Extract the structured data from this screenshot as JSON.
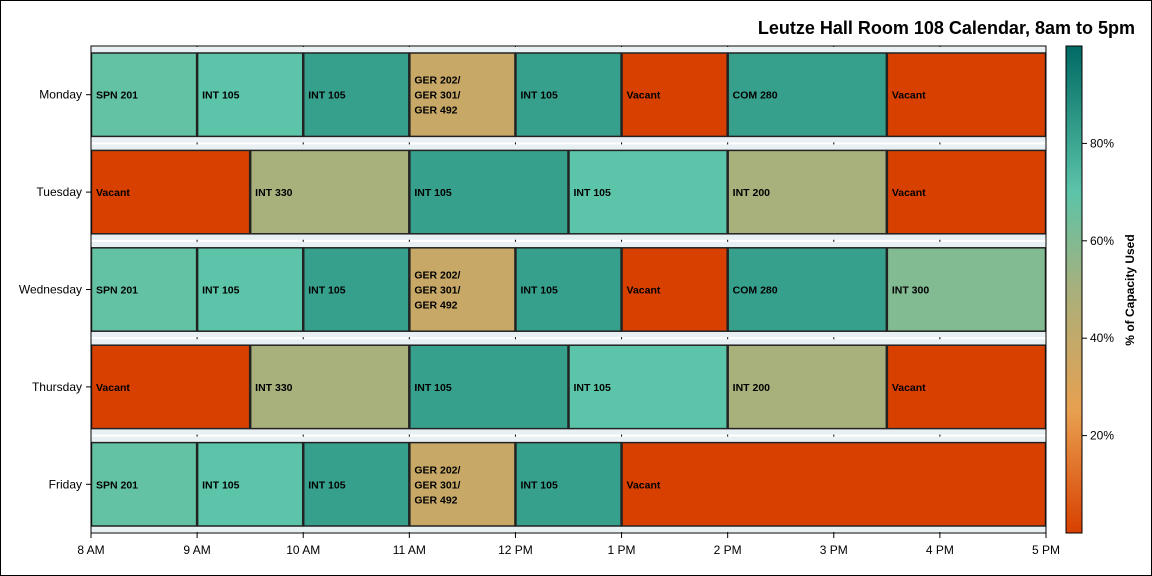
{
  "chart_data": {
    "type": "bar",
    "orientation": "horizontal-gantt",
    "title": "Leutze Hall Room 108 Calendar, 8am to 5pm",
    "xlabel": "",
    "ylabel": "",
    "xlim": [
      8,
      17
    ],
    "x_ticks": [
      8,
      9,
      10,
      11,
      12,
      13,
      14,
      15,
      16,
      17
    ],
    "x_tick_labels": [
      "8 AM",
      "9 AM",
      "10 AM",
      "11 AM",
      "12 PM",
      "1 PM",
      "2 PM",
      "3 PM",
      "4 PM",
      "5 PM"
    ],
    "categories": [
      "Monday",
      "Tuesday",
      "Wednesday",
      "Thursday",
      "Friday"
    ],
    "grid": true,
    "rows": [
      {
        "day": "Monday",
        "blocks": [
          {
            "start": 8,
            "end": 9,
            "label": "SPN 201",
            "capacity": 68
          },
          {
            "start": 9,
            "end": 10,
            "label": "INT 105",
            "capacity": 70
          },
          {
            "start": 10,
            "end": 11,
            "label": "INT 105",
            "capacity": 82
          },
          {
            "start": 11,
            "end": 12,
            "label": "GER 202/ GER 301/ GER 492",
            "capacity": 38
          },
          {
            "start": 12,
            "end": 13,
            "label": "INT 105",
            "capacity": 82
          },
          {
            "start": 13,
            "end": 14,
            "label": "Vacant",
            "capacity": 0
          },
          {
            "start": 14,
            "end": 15.5,
            "label": "COM 280",
            "capacity": 82
          },
          {
            "start": 15.5,
            "end": 17,
            "label": "Vacant",
            "capacity": 0
          }
        ]
      },
      {
        "day": "Tuesday",
        "blocks": [
          {
            "start": 8,
            "end": 9.5,
            "label": "Vacant",
            "capacity": 0
          },
          {
            "start": 9.5,
            "end": 11,
            "label": "INT 330",
            "capacity": 50
          },
          {
            "start": 11,
            "end": 12.5,
            "label": "INT 105",
            "capacity": 82
          },
          {
            "start": 12.5,
            "end": 14,
            "label": "INT 105",
            "capacity": 70
          },
          {
            "start": 14,
            "end": 15.5,
            "label": "INT 200",
            "capacity": 50
          },
          {
            "start": 15.5,
            "end": 17,
            "label": "Vacant",
            "capacity": 0
          }
        ]
      },
      {
        "day": "Wednesday",
        "blocks": [
          {
            "start": 8,
            "end": 9,
            "label": "SPN 201",
            "capacity": 68
          },
          {
            "start": 9,
            "end": 10,
            "label": "INT 105",
            "capacity": 70
          },
          {
            "start": 10,
            "end": 11,
            "label": "INT 105",
            "capacity": 82
          },
          {
            "start": 11,
            "end": 12,
            "label": "GER 202/ GER 301/ GER 492",
            "capacity": 38
          },
          {
            "start": 12,
            "end": 13,
            "label": "INT 105",
            "capacity": 82
          },
          {
            "start": 13,
            "end": 14,
            "label": "Vacant",
            "capacity": 0
          },
          {
            "start": 14,
            "end": 15.5,
            "label": "COM 280",
            "capacity": 82
          },
          {
            "start": 15.5,
            "end": 17,
            "label": "INT 300",
            "capacity": 60
          }
        ]
      },
      {
        "day": "Thursday",
        "blocks": [
          {
            "start": 8,
            "end": 9.5,
            "label": "Vacant",
            "capacity": 0
          },
          {
            "start": 9.5,
            "end": 11,
            "label": "INT 330",
            "capacity": 50
          },
          {
            "start": 11,
            "end": 12.5,
            "label": "INT 105",
            "capacity": 82
          },
          {
            "start": 12.5,
            "end": 14,
            "label": "INT 105",
            "capacity": 70
          },
          {
            "start": 14,
            "end": 15.5,
            "label": "INT 200",
            "capacity": 50
          },
          {
            "start": 15.5,
            "end": 17,
            "label": "Vacant",
            "capacity": 0
          }
        ]
      },
      {
        "day": "Friday",
        "blocks": [
          {
            "start": 8,
            "end": 9,
            "label": "SPN 201",
            "capacity": 68
          },
          {
            "start": 9,
            "end": 10,
            "label": "INT 105",
            "capacity": 70
          },
          {
            "start": 10,
            "end": 11,
            "label": "INT 105",
            "capacity": 82
          },
          {
            "start": 11,
            "end": 12,
            "label": "GER 202/ GER 301/ GER 492",
            "capacity": 38
          },
          {
            "start": 12,
            "end": 13,
            "label": "INT 105",
            "capacity": 82
          },
          {
            "start": 13,
            "end": 17,
            "label": "Vacant",
            "capacity": 0
          }
        ]
      }
    ],
    "colorbar": {
      "label": "% of Capacity Used",
      "range": [
        0,
        100
      ],
      "ticks": [
        20,
        40,
        60,
        80
      ],
      "tick_labels": [
        "20%",
        "40%",
        "60%",
        "80%"
      ],
      "stops": [
        {
          "value": 0,
          "color": "#d84000"
        },
        {
          "value": 25,
          "color": "#e8a050"
        },
        {
          "value": 50,
          "color": "#a8b07c"
        },
        {
          "value": 70,
          "color": "#5cc4a8"
        },
        {
          "value": 100,
          "color": "#006a64"
        }
      ]
    }
  }
}
